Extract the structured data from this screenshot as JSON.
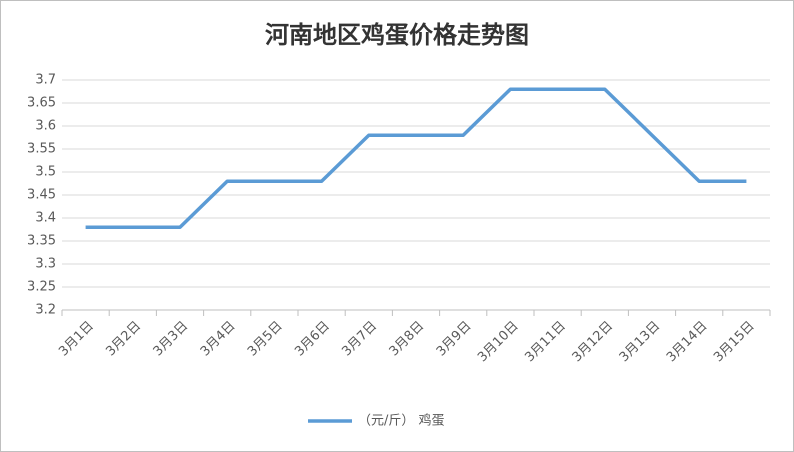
{
  "chart_data": {
    "type": "line",
    "title": "河南地区鸡蛋价格走势图",
    "categories": [
      "3月1日",
      "3月2日",
      "3月3日",
      "3月4日",
      "3月5日",
      "3月6日",
      "3月7日",
      "3月8日",
      "3月9日",
      "3月10日",
      "3月11日",
      "3月12日",
      "3月13日",
      "3月14日",
      "3月15日"
    ],
    "series": [
      {
        "name": "（元/斤） 鸡蛋",
        "color": "#5b9bd5",
        "values": [
          3.38,
          3.38,
          3.38,
          3.48,
          3.48,
          3.48,
          3.58,
          3.58,
          3.58,
          3.68,
          3.68,
          3.68,
          3.58,
          3.48,
          3.48
        ]
      }
    ],
    "ylim": [
      3.2,
      3.7
    ],
    "yticks": [
      3.2,
      3.25,
      3.3,
      3.35,
      3.4,
      3.45,
      3.5,
      3.55,
      3.6,
      3.65,
      3.7
    ],
    "grid": true,
    "legend": "bottom"
  }
}
